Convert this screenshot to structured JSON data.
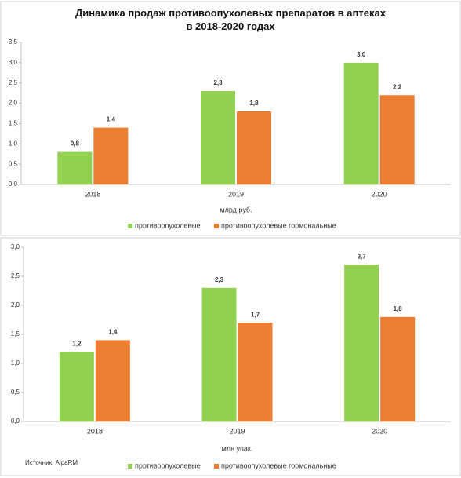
{
  "chart_data": [
    {
      "type": "bar",
      "title": "Динамика продаж противоопухолевых препаратов в аптеках в 2018-2020 годах",
      "categories": [
        "2018",
        "2019",
        "2020"
      ],
      "x_label": "млрд руб.",
      "series": [
        {
          "name": "противоопухолевые",
          "color": "#92d050",
          "values": [
            0.8,
            2.3,
            3.0
          ],
          "value_labels": [
            "0,8",
            "2,3",
            "3,0"
          ]
        },
        {
          "name": "противоопухолевые гормональные",
          "color": "#ed7d31",
          "values": [
            1.4,
            1.8,
            2.2
          ],
          "value_labels": [
            "1,4",
            "1,8",
            "2,2"
          ]
        }
      ],
      "ylim": [
        0,
        3.5
      ],
      "yticks": [
        {
          "value": 0,
          "label": "0,0"
        },
        {
          "value": 0.5,
          "label": "0,5"
        },
        {
          "value": 1,
          "label": "1,0"
        },
        {
          "value": 1.5,
          "label": "1,5"
        },
        {
          "value": 2,
          "label": "2,0"
        },
        {
          "value": 2.5,
          "label": "2,5"
        },
        {
          "value": 3,
          "label": "3,0"
        },
        {
          "value": 3.5,
          "label": "3,5"
        }
      ],
      "grid": false,
      "legend": "bottom"
    },
    {
      "type": "bar",
      "categories": [
        "2018",
        "2019",
        "2020"
      ],
      "x_label": "млн упак.",
      "source": "Источник: AlpaRM",
      "series": [
        {
          "name": "противоопухолевые",
          "color": "#92d050",
          "values": [
            1.2,
            2.3,
            2.7
          ],
          "value_labels": [
            "1,2",
            "2,3",
            "2,7"
          ]
        },
        {
          "name": "противоопухолевые гормональные",
          "color": "#ed7d31",
          "values": [
            1.4,
            1.7,
            1.8
          ],
          "value_labels": [
            "1,4",
            "1,7",
            "1,8"
          ]
        }
      ],
      "ylim": [
        0,
        3.0
      ],
      "yticks": [
        {
          "value": 0,
          "label": "0,0"
        },
        {
          "value": 0.5,
          "label": "0,5"
        },
        {
          "value": 1,
          "label": "1,0"
        },
        {
          "value": 1.5,
          "label": "1,5"
        },
        {
          "value": 2,
          "label": "2,0"
        },
        {
          "value": 2.5,
          "label": "2,5"
        },
        {
          "value": 3,
          "label": "3,0"
        }
      ],
      "grid": false,
      "legend": "bottom"
    }
  ]
}
